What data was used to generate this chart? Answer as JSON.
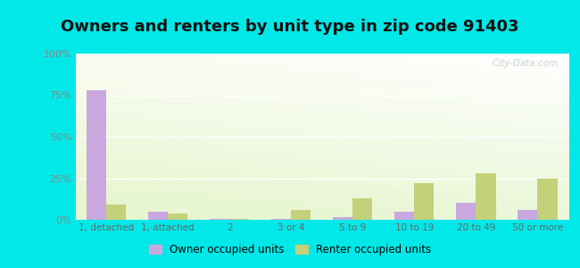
{
  "title": "Owners and renters by unit type in zip code 91403",
  "categories": [
    "1, detached",
    "1, attached",
    "2",
    "3 or 4",
    "5 to 9",
    "10 to 19",
    "20 to 49",
    "50 or more"
  ],
  "owner_values": [
    78,
    5,
    0.8,
    0.3,
    1.5,
    5,
    10,
    6
  ],
  "renter_values": [
    9,
    3.5,
    0.5,
    6,
    13,
    22,
    28,
    25
  ],
  "owner_color": "#c9a8e0",
  "renter_color": "#c5d07a",
  "background_color": "#00e8e8",
  "plot_bg_top_left": "#ddeedd",
  "plot_bg_top_right": "#f5faf5",
  "plot_bg_bottom": "#c8e8d0",
  "title_fontsize": 13,
  "ylabel_ticks": [
    "0%",
    "25%",
    "50%",
    "75%",
    "100%"
  ],
  "ylabel_values": [
    0,
    25,
    50,
    75,
    100
  ],
  "ylim": [
    0,
    100
  ],
  "legend_owner": "Owner occupied units",
  "legend_renter": "Renter occupied units",
  "watermark": "City-Data.com",
  "grid_color": "#ffffff",
  "tick_color": "#888888"
}
